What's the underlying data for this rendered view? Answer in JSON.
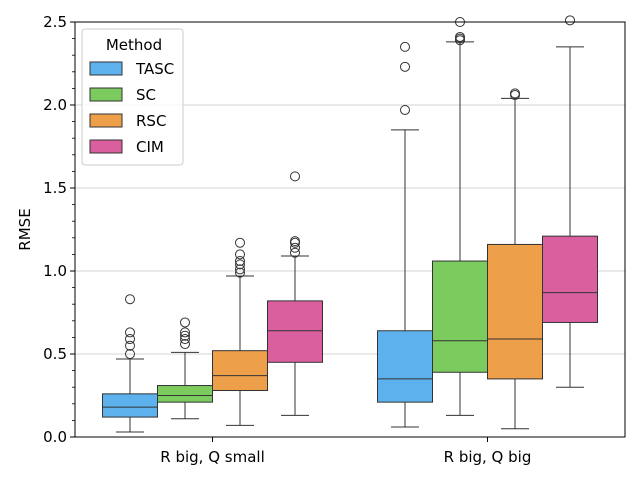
{
  "chart_data": {
    "type": "box",
    "ylabel": "RMSE",
    "xlabel": "",
    "ylim": [
      0.0,
      2.5
    ],
    "yticks": [
      "0.0",
      "0.5",
      "1.0",
      "1.5",
      "2.0",
      "2.5"
    ],
    "grid": "horizontal",
    "categories": [
      "R big, Q small",
      "R big, Q big"
    ],
    "legend": {
      "title": "Method",
      "placement": "top-left",
      "entries": [
        "TASC",
        "SC",
        "RSC",
        "CIM"
      ]
    },
    "colors": {
      "TASC": "#5db2ee",
      "SC": "#7ccb5e",
      "RSC": "#ee9f4a",
      "CIM": "#d95f9f"
    },
    "series": [
      {
        "name": "TASC",
        "boxes": [
          {
            "min": 0.03,
            "q1": 0.12,
            "median": 0.18,
            "q3": 0.26,
            "max": 0.47,
            "outliers": [
              0.5,
              0.55,
              0.59,
              0.63,
              0.83
            ]
          },
          {
            "min": 0.06,
            "q1": 0.21,
            "median": 0.35,
            "q3": 0.64,
            "max": 1.85,
            "outliers": [
              1.97,
              2.23,
              2.35
            ]
          }
        ]
      },
      {
        "name": "SC",
        "boxes": [
          {
            "min": 0.11,
            "q1": 0.21,
            "median": 0.25,
            "q3": 0.31,
            "max": 0.51,
            "outliers": [
              0.56,
              0.59,
              0.61,
              0.63,
              0.69
            ]
          },
          {
            "min": 0.13,
            "q1": 0.39,
            "median": 0.58,
            "q3": 1.06,
            "max": 2.38,
            "outliers": [
              2.39,
              2.4,
              2.41,
              2.5
            ]
          }
        ]
      },
      {
        "name": "RSC",
        "boxes": [
          {
            "min": 0.07,
            "q1": 0.28,
            "median": 0.37,
            "q3": 0.52,
            "max": 0.97,
            "outliers": [
              0.99,
              1.01,
              1.04,
              1.06,
              1.1,
              1.17
            ]
          },
          {
            "min": 0.05,
            "q1": 0.35,
            "median": 0.59,
            "q3": 1.16,
            "max": 2.04,
            "outliers": [
              2.06,
              2.07
            ]
          }
        ]
      },
      {
        "name": "CIM",
        "boxes": [
          {
            "min": 0.13,
            "q1": 0.45,
            "median": 0.64,
            "q3": 0.82,
            "max": 1.09,
            "outliers": [
              1.11,
              1.14,
              1.17,
              1.18,
              1.57
            ]
          },
          {
            "min": 0.3,
            "q1": 0.69,
            "median": 0.87,
            "q3": 1.21,
            "max": 2.35,
            "outliers": [
              2.51
            ]
          }
        ]
      }
    ]
  }
}
